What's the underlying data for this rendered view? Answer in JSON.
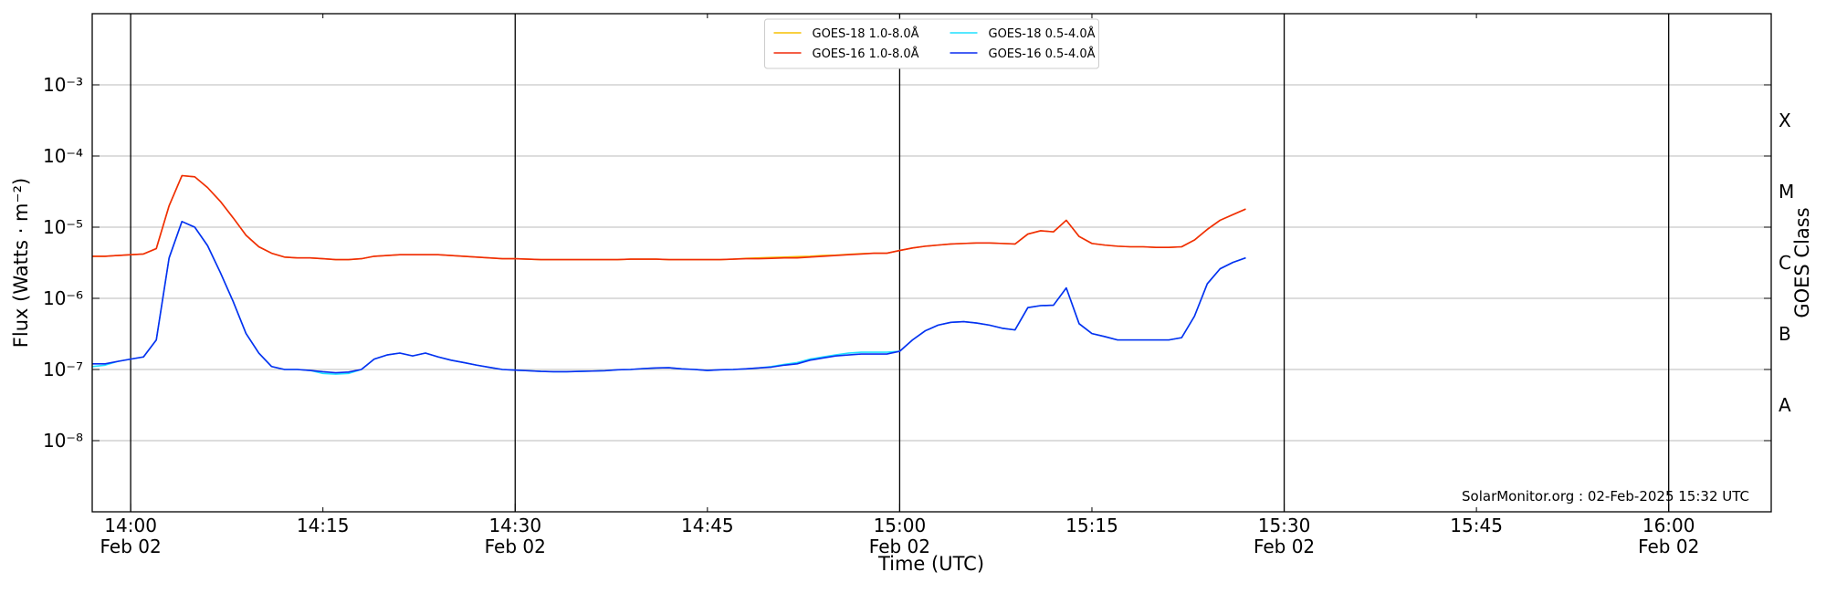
{
  "chart_data": {
    "type": "line",
    "xlabel": "Time (UTC)",
    "ylabel": "Flux (Watts · m⁻²)",
    "y2label": "GOES Class",
    "annotation": "SolarMonitor.org : 02-Feb-2025 15:32 UTC",
    "log_scale": true,
    "grid": true,
    "xgrid": true,
    "legend": "upper center",
    "xlim": [
      "13:57",
      "16:08"
    ],
    "ylim": [
      1e-09,
      0.01
    ],
    "y2lim": [
      1e-09,
      0.01
    ],
    "xticks": [
      {
        "value": "14:00",
        "label": "14:00\nFeb 02"
      },
      {
        "value": "14:30",
        "label": "14:30\nFeb 02"
      },
      {
        "value": "15:00",
        "label": "15:00\nFeb 02"
      },
      {
        "value": "15:30",
        "label": "15:30\nFeb 02"
      },
      {
        "value": "16:00",
        "label": "16:00\nFeb 02"
      }
    ],
    "xminorticks": [
      "14:15",
      "14:45",
      "15:15",
      "15:45"
    ],
    "yticks": [
      {
        "value": 1e-08,
        "label": "10⁻⁸"
      },
      {
        "value": 1e-07,
        "label": "10⁻⁷"
      },
      {
        "value": 1e-06,
        "label": "10⁻⁶"
      },
      {
        "value": 1e-05,
        "label": "10⁻⁵"
      },
      {
        "value": 0.0001,
        "label": "10⁻⁴"
      },
      {
        "value": 0.001,
        "label": "10⁻³"
      }
    ],
    "y2ticks": [
      {
        "value": 3.16e-08,
        "label": "A"
      },
      {
        "value": 3.16e-07,
        "label": "B"
      },
      {
        "value": 3.16e-06,
        "label": "C"
      },
      {
        "value": 3.16e-05,
        "label": "M"
      },
      {
        "value": 0.000316,
        "label": "X"
      }
    ],
    "x": [
      "13:57",
      "13:58",
      "13:59",
      "14:00",
      "14:01",
      "14:02",
      "14:03",
      "14:04",
      "14:05",
      "14:06",
      "14:07",
      "14:08",
      "14:09",
      "14:10",
      "14:11",
      "14:12",
      "14:13",
      "14:14",
      "14:15",
      "14:16",
      "14:17",
      "14:18",
      "14:19",
      "14:20",
      "14:21",
      "14:22",
      "14:23",
      "14:24",
      "14:25",
      "14:26",
      "14:27",
      "14:28",
      "14:29",
      "14:30",
      "14:31",
      "14:32",
      "14:33",
      "14:34",
      "14:35",
      "14:36",
      "14:37",
      "14:38",
      "14:39",
      "14:40",
      "14:41",
      "14:42",
      "14:43",
      "14:44",
      "14:45",
      "14:46",
      "14:47",
      "14:48",
      "14:49",
      "14:50",
      "14:51",
      "14:52",
      "14:53",
      "14:54",
      "14:55",
      "14:56",
      "14:57",
      "14:58",
      "14:59",
      "15:00",
      "15:01",
      "15:02",
      "15:03",
      "15:04",
      "15:05",
      "15:06",
      "15:07",
      "15:08",
      "15:09",
      "15:10",
      "15:11",
      "15:12",
      "15:13",
      "15:14",
      "15:15",
      "15:16",
      "15:17",
      "15:18",
      "15:19",
      "15:20",
      "15:21",
      "15:22",
      "15:23",
      "15:24",
      "15:25",
      "15:26",
      "15:27"
    ],
    "series": [
      {
        "name": "GOES-18 1.0-8.0Å",
        "color": "#f5c000",
        "values": [
          3.9e-06,
          3.9e-06,
          4e-06,
          4.1e-06,
          4.2e-06,
          5e-06,
          2e-05,
          5.3e-05,
          5.1e-05,
          3.6e-05,
          2.3e-05,
          1.35e-05,
          7.7e-06,
          5.3e-06,
          4.3e-06,
          3.8e-06,
          3.7e-06,
          3.7e-06,
          3.6e-06,
          3.5e-06,
          3.5e-06,
          3.6e-06,
          3.9e-06,
          4e-06,
          4.1e-06,
          4.1e-06,
          4.1e-06,
          4.1e-06,
          4e-06,
          3.9e-06,
          3.8e-06,
          3.7e-06,
          3.6e-06,
          3.6e-06,
          3.55e-06,
          3.5e-06,
          3.5e-06,
          3.5e-06,
          3.5e-06,
          3.5e-06,
          3.5e-06,
          3.5e-06,
          3.55e-06,
          3.55e-06,
          3.55e-06,
          3.5e-06,
          3.5e-06,
          3.5e-06,
          3.5e-06,
          3.5e-06,
          3.55e-06,
          3.65e-06,
          3.7e-06,
          3.75e-06,
          3.8e-06,
          3.85e-06,
          3.9e-06,
          4e-06,
          4.05e-06,
          4.15e-06,
          4.25e-06,
          4.3e-06,
          4.3e-06,
          4.7e-06,
          5.1e-06,
          5.4e-06,
          5.6e-06,
          5.8e-06,
          5.9e-06,
          6e-06,
          6e-06,
          5.9e-06,
          5.8e-06,
          8e-06,
          8.9e-06,
          8.6e-06,
          1.25e-05,
          7.4e-06,
          5.9e-06,
          5.6e-06,
          5.4e-06,
          5.3e-06,
          5.3e-06,
          5.2e-06,
          5.2e-06,
          5.3e-06,
          6.6e-06,
          9.3e-06,
          1.25e-05,
          1.5e-05,
          1.8e-05
        ]
      },
      {
        "name": "GOES-16 1.0-8.0Å",
        "color": "#f02a0a",
        "values": [
          3.9e-06,
          3.9e-06,
          4e-06,
          4.1e-06,
          4.2e-06,
          5e-06,
          2e-05,
          5.3e-05,
          5.1e-05,
          3.6e-05,
          2.3e-05,
          1.35e-05,
          7.7e-06,
          5.3e-06,
          4.3e-06,
          3.8e-06,
          3.7e-06,
          3.7e-06,
          3.6e-06,
          3.5e-06,
          3.5e-06,
          3.6e-06,
          3.9e-06,
          4e-06,
          4.1e-06,
          4.1e-06,
          4.1e-06,
          4.1e-06,
          4e-06,
          3.9e-06,
          3.8e-06,
          3.7e-06,
          3.6e-06,
          3.6e-06,
          3.55e-06,
          3.5e-06,
          3.5e-06,
          3.5e-06,
          3.5e-06,
          3.5e-06,
          3.5e-06,
          3.5e-06,
          3.55e-06,
          3.55e-06,
          3.55e-06,
          3.5e-06,
          3.5e-06,
          3.5e-06,
          3.5e-06,
          3.5e-06,
          3.55e-06,
          3.6e-06,
          3.6e-06,
          3.65e-06,
          3.7e-06,
          3.7e-06,
          3.8e-06,
          3.9e-06,
          4e-06,
          4.1e-06,
          4.2e-06,
          4.3e-06,
          4.3e-06,
          4.7e-06,
          5.1e-06,
          5.4e-06,
          5.6e-06,
          5.8e-06,
          5.9e-06,
          6e-06,
          6e-06,
          5.9e-06,
          5.8e-06,
          8e-06,
          8.9e-06,
          8.6e-06,
          1.25e-05,
          7.4e-06,
          5.9e-06,
          5.6e-06,
          5.4e-06,
          5.3e-06,
          5.3e-06,
          5.2e-06,
          5.2e-06,
          5.3e-06,
          6.6e-06,
          9.3e-06,
          1.25e-05,
          1.5e-05,
          1.8e-05
        ]
      },
      {
        "name": "GOES-18 0.5-4.0Å",
        "color": "#1ee0ff",
        "values": [
          1.1e-07,
          1.15e-07,
          1.3e-07,
          1.4e-07,
          1.5e-07,
          2.6e-07,
          3.7e-06,
          1.2e-05,
          1e-05,
          5.5e-06,
          2.3e-06,
          9e-07,
          3.2e-07,
          1.7e-07,
          1.1e-07,
          1e-07,
          1e-07,
          9.7e-08,
          8.8e-08,
          8.6e-08,
          8.8e-08,
          1e-07,
          1.4e-07,
          1.6e-07,
          1.7e-07,
          1.55e-07,
          1.7e-07,
          1.5e-07,
          1.35e-07,
          1.25e-07,
          1.15e-07,
          1.07e-07,
          1e-07,
          9.8e-08,
          9.6e-08,
          9.4e-08,
          9.3e-08,
          9.3e-08,
          9.4e-08,
          9.5e-08,
          9.6e-08,
          9.9e-08,
          1e-07,
          1.03e-07,
          1.05e-07,
          1.06e-07,
          1.02e-07,
          1e-07,
          9.7e-08,
          9.9e-08,
          1e-07,
          1.02e-07,
          1.05e-07,
          1.1e-07,
          1.18e-07,
          1.25e-07,
          1.4e-07,
          1.5e-07,
          1.6e-07,
          1.7e-07,
          1.75e-07,
          1.75e-07,
          1.75e-07,
          1.8e-07,
          2.6e-07,
          3.5e-07,
          4.2e-07,
          4.6e-07,
          4.7e-07,
          4.5e-07,
          4.2e-07,
          3.8e-07,
          3.6e-07,
          7.4e-07,
          7.9e-07,
          8e-07,
          1.4e-06,
          4.4e-07,
          3.2e-07,
          2.9e-07,
          2.6e-07,
          2.6e-07,
          2.6e-07,
          2.6e-07,
          2.6e-07,
          2.8e-07,
          5.6e-07,
          1.6e-06,
          2.6e-06,
          3.2e-06,
          3.7e-06
        ]
      },
      {
        "name": "GOES-16 0.5-4.0Å",
        "color": "#0a2cf0",
        "values": [
          1.2e-07,
          1.2e-07,
          1.3e-07,
          1.4e-07,
          1.5e-07,
          2.6e-07,
          3.7e-06,
          1.2e-05,
          1e-05,
          5.5e-06,
          2.3e-06,
          9e-07,
          3.2e-07,
          1.7e-07,
          1.1e-07,
          1e-07,
          1e-07,
          9.7e-08,
          9.3e-08,
          9e-08,
          9.2e-08,
          1e-07,
          1.4e-07,
          1.6e-07,
          1.7e-07,
          1.55e-07,
          1.7e-07,
          1.5e-07,
          1.35e-07,
          1.25e-07,
          1.15e-07,
          1.07e-07,
          1e-07,
          9.8e-08,
          9.6e-08,
          9.4e-08,
          9.3e-08,
          9.3e-08,
          9.4e-08,
          9.5e-08,
          9.6e-08,
          9.9e-08,
          1e-07,
          1.03e-07,
          1.05e-07,
          1.06e-07,
          1.02e-07,
          1e-07,
          9.7e-08,
          9.9e-08,
          1e-07,
          1.02e-07,
          1.05e-07,
          1.08e-07,
          1.15e-07,
          1.2e-07,
          1.35e-07,
          1.45e-07,
          1.55e-07,
          1.6e-07,
          1.65e-07,
          1.65e-07,
          1.65e-07,
          1.8e-07,
          2.6e-07,
          3.5e-07,
          4.2e-07,
          4.6e-07,
          4.7e-07,
          4.5e-07,
          4.2e-07,
          3.8e-07,
          3.6e-07,
          7.4e-07,
          7.9e-07,
          8e-07,
          1.4e-06,
          4.4e-07,
          3.2e-07,
          2.9e-07,
          2.6e-07,
          2.6e-07,
          2.6e-07,
          2.6e-07,
          2.6e-07,
          2.8e-07,
          5.6e-07,
          1.6e-06,
          2.6e-06,
          3.2e-06,
          3.7e-06
        ]
      }
    ]
  }
}
